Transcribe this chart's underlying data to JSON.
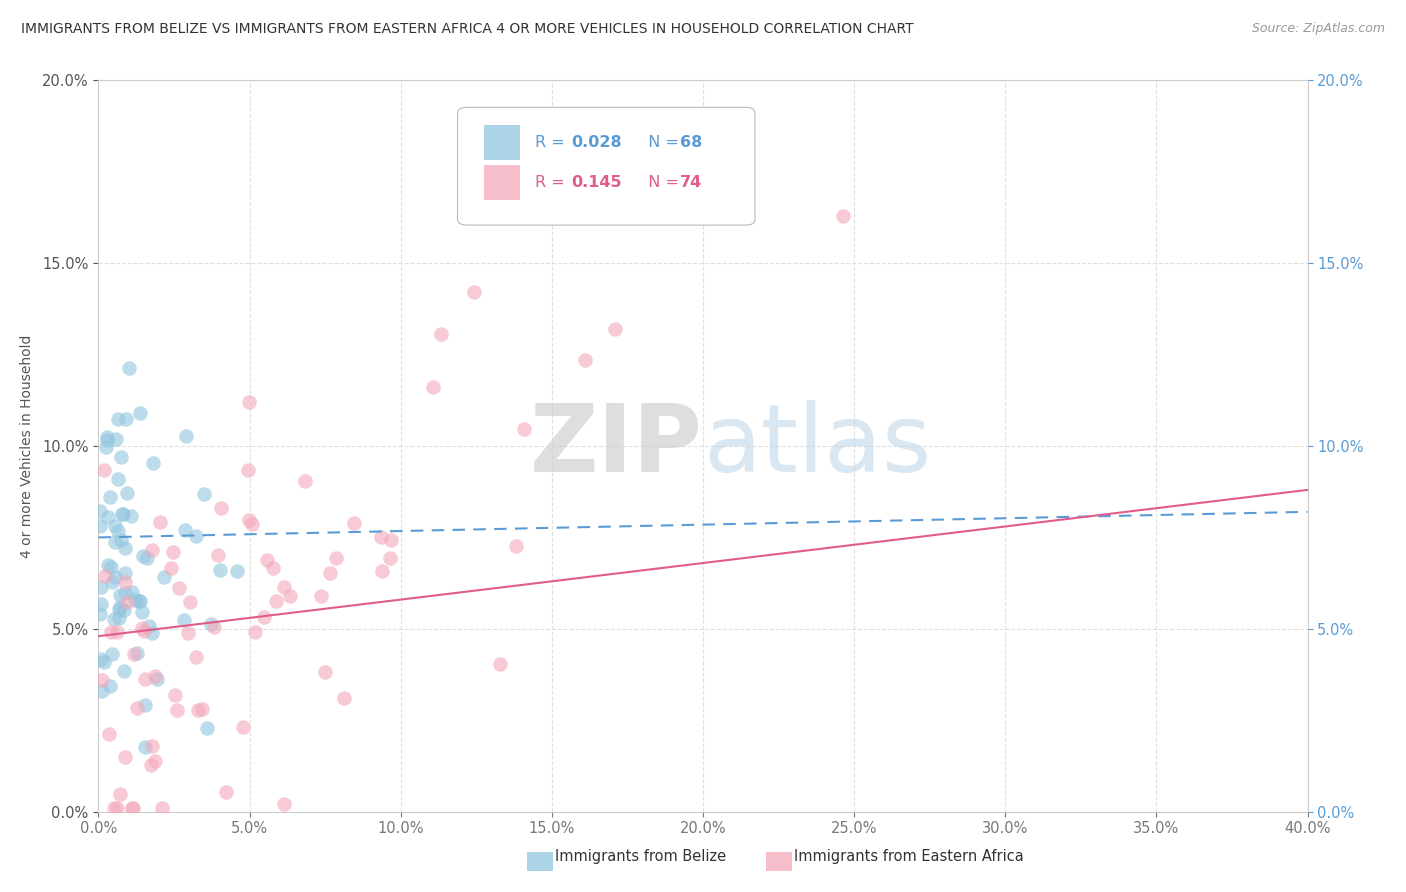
{
  "title": "IMMIGRANTS FROM BELIZE VS IMMIGRANTS FROM EASTERN AFRICA 4 OR MORE VEHICLES IN HOUSEHOLD CORRELATION CHART",
  "source": "Source: ZipAtlas.com",
  "ylabel": "4 or more Vehicles in Household",
  "belize_label": "Immigrants from Belize",
  "eastern_label": "Immigrants from Eastern Africa",
  "belize_R": "0.028",
  "belize_N": "68",
  "eastern_R": "0.145",
  "eastern_N": "74",
  "watermark_zip": "ZIP",
  "watermark_atlas": "atlas",
  "belize_color": "#92c5de",
  "eastern_color": "#f4a7b9",
  "belize_trend_color": "#5b9bd5",
  "eastern_trend_color": "#e05c8a",
  "right_tick_color": "#5b9bd5",
  "xlim": [
    0.0,
    0.4
  ],
  "ylim": [
    0.0,
    0.2
  ],
  "xticks": [
    0.0,
    0.05,
    0.1,
    0.15,
    0.2,
    0.25,
    0.3,
    0.35,
    0.4
  ],
  "yticks": [
    0.0,
    0.05,
    0.1,
    0.15,
    0.2
  ],
  "background_color": "#ffffff",
  "grid_color": "#e0e0e0",
  "belize_trend_start_y": 0.075,
  "belize_trend_end_y": 0.082,
  "eastern_trend_start_y": 0.048,
  "eastern_trend_end_y": 0.088
}
